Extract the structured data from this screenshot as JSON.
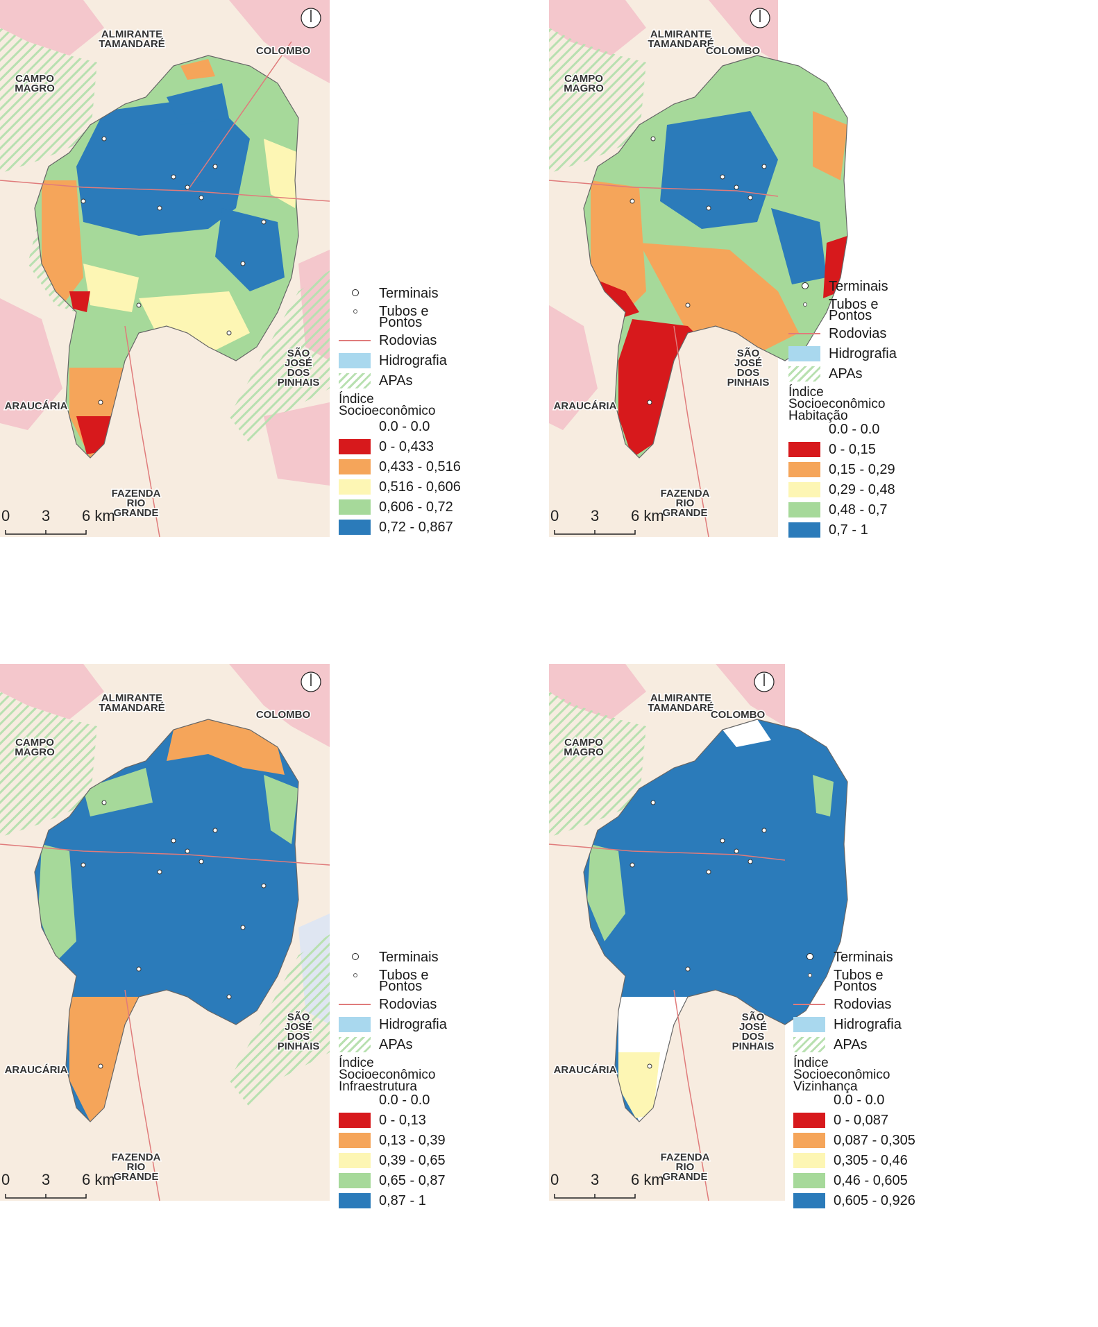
{
  "places": {
    "almirante": [
      "ALMIRANTE",
      "TAMANDARÉ"
    ],
    "colombo": [
      "COLOMBO"
    ],
    "campo_magro": [
      "CAMPO",
      "MAGRO"
    ],
    "sao_jose": [
      "SÃO",
      "JOSÉ",
      "DOS",
      "PINHAIS"
    ],
    "araucaria": [
      "ARAUCÁRIA"
    ],
    "fazenda": [
      "FAZENDA",
      "RIO",
      "GRANDE"
    ]
  },
  "scale_labels": [
    "0",
    "3",
    "6 km"
  ],
  "legend_common": {
    "terminais": "Terminais",
    "tubos": [
      "Tubos e",
      "Pontos"
    ],
    "rodovias": "Rodovias",
    "hidrografia": "Hidrografia",
    "apas": "APAs"
  },
  "colors": {
    "class_0": "#d7191c",
    "class_1": "#f5a55a",
    "class_2": "#fdf6b4",
    "class_3": "#a6d99a",
    "class_4": "#2b7bba",
    "hidrografia": "#a9d8ee",
    "rodovias": "#e07b7b",
    "urban_pink": "#f4c7cc",
    "background": "#f7ece0"
  },
  "maps": [
    {
      "title": [
        "Índice",
        "Socioeconômico"
      ],
      "null_class": "0.0 - 0.0",
      "classes": [
        "0 - 0,433",
        "0,433 - 0,516",
        "0,516 - 0,606",
        "0,606 - 0,72",
        "0,72 - 0,867"
      ]
    },
    {
      "title": [
        "Índice",
        "Socioeconômico",
        "Habitação"
      ],
      "null_class": "0.0 - 0.0",
      "classes": [
        "0 - 0,15",
        "0,15 - 0,29",
        "0,29 - 0,48",
        "0,48 - 0,7",
        "0,7 - 1"
      ]
    },
    {
      "title": [
        "Índice",
        "Socioeconômico",
        "Infraestrutura"
      ],
      "null_class": "0.0 - 0.0",
      "classes": [
        "0 - 0,13",
        "0,13 - 0,39",
        "0,39 - 0,65",
        "0,65 - 0,87",
        "0,87 - 1"
      ]
    },
    {
      "title": [
        "Índice",
        "Socioeconômico",
        "Vizinhança"
      ],
      "null_class": "0.0 - 0.0",
      "classes": [
        "0 - 0,087",
        "0,087 - 0,305",
        "0,305 - 0,46",
        "0,46 - 0,605",
        "0,605 - 0,926"
      ]
    }
  ]
}
